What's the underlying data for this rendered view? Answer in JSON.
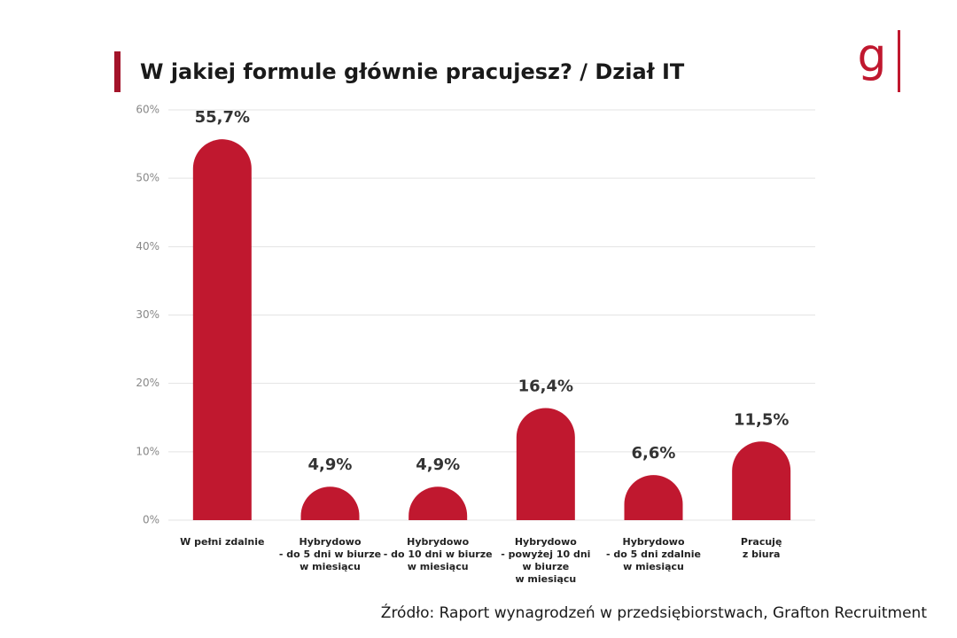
{
  "chart_data": {
    "type": "bar",
    "title": "W jakiej formule głównie pracujesz? / Dział IT",
    "logo": "g",
    "source": "Źródło: Raport wynagrodzeń w  przedsiębiorstwach, Grafton Recruitment",
    "categories": [
      "W pełni zdalnie",
      "Hybrydowo\n- do 5 dni w biurze\nw miesiącu",
      "Hybrydowo\n- do 10 dni w biurze\nw miesiącu",
      "Hybrydowo\n- powyżej 10 dni\nw biurze\nw miesiącu",
      "Hybrydowo\n- do 5 dni zdalnie\nw miesiącu",
      "Pracuję\nz biura"
    ],
    "values": [
      55.7,
      4.9,
      4.9,
      16.4,
      6.6,
      11.5
    ],
    "value_labels": [
      "55,7%",
      "4,9%",
      "4,9%",
      "16,4%",
      "6,6%",
      "11,5%"
    ],
    "color": "#c0182f",
    "ylim": [
      0,
      60
    ],
    "yticks": [
      {
        "value": 0,
        "label": "0%"
      },
      {
        "value": 10,
        "label": "10%"
      },
      {
        "value": 20,
        "label": "20%"
      },
      {
        "value": 30,
        "label": "30%"
      },
      {
        "value": 40,
        "label": "40%"
      },
      {
        "value": 50,
        "label": "50%"
      },
      {
        "value": 60,
        "label": "60%"
      }
    ],
    "grid": true
  }
}
